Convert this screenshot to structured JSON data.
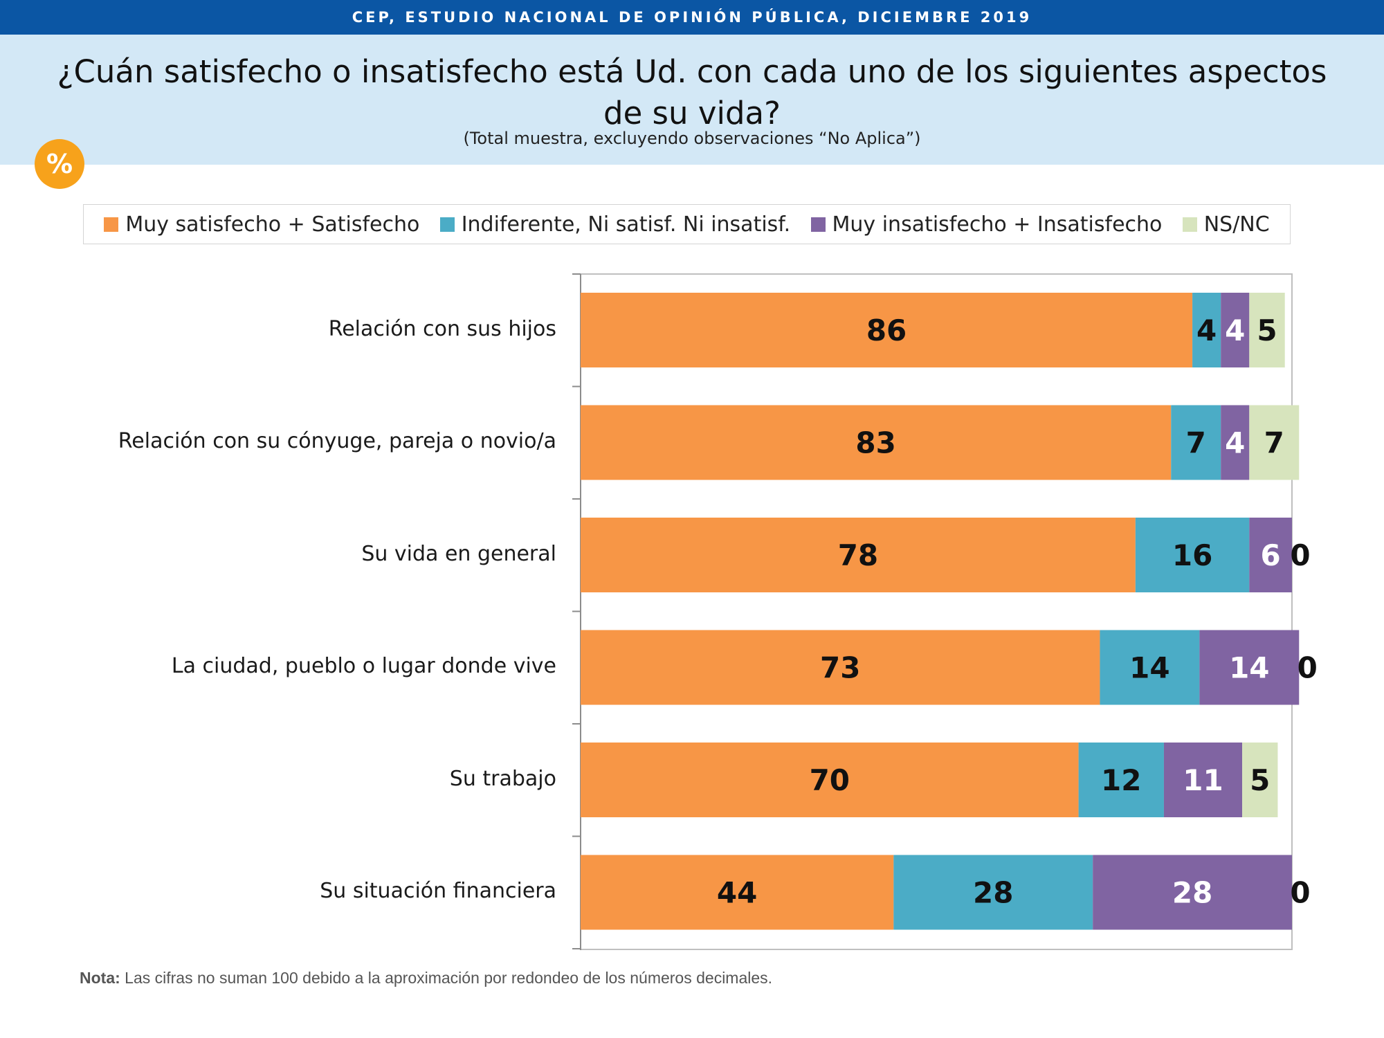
{
  "header": {
    "banner": "CEP, ESTUDIO NACIONAL DE OPINIÓN PÚBLICA, DICIEMBRE 2019",
    "title": "¿Cuán satisfecho o insatisfecho está Ud. con cada uno de los siguientes aspectos de su vida?",
    "subtitle": "(Total muestra, excluyendo observaciones “No Aplica”)",
    "badge": "%"
  },
  "colors": {
    "satisfied": "#f79646",
    "indifferent": "#4bacc6",
    "dissatisfied": "#8064a2",
    "nsnc": "#d7e4bd"
  },
  "chart_data": {
    "type": "bar",
    "orientation": "horizontal",
    "stacked": true,
    "xlim": [
      0,
      100
    ],
    "legend_position": "top",
    "categories": [
      "Relación con sus hijos",
      "Relación con su cónyuge, pareja o novio/a",
      "Su vida en general",
      "La ciudad, pueblo o lugar donde vive",
      "Su trabajo",
      "Su situación financiera"
    ],
    "series": [
      {
        "name": "Muy satisfecho + Satisfecho",
        "values": [
          86,
          83,
          78,
          73,
          70,
          44
        ]
      },
      {
        "name": "Indiferente, Ni satisf. Ni insatisf.",
        "values": [
          4,
          7,
          16,
          14,
          12,
          28
        ]
      },
      {
        "name": "Muy insatisfecho + Insatisfecho",
        "values": [
          4,
          4,
          6,
          14,
          11,
          28
        ]
      },
      {
        "name": "NS/NC",
        "values": [
          5,
          7,
          0,
          0,
          5,
          0
        ]
      }
    ]
  },
  "note": {
    "label": "Nota:",
    "text": " Las cifras no suman 100 debido a la aproximación por redondeo de los números decimales."
  }
}
